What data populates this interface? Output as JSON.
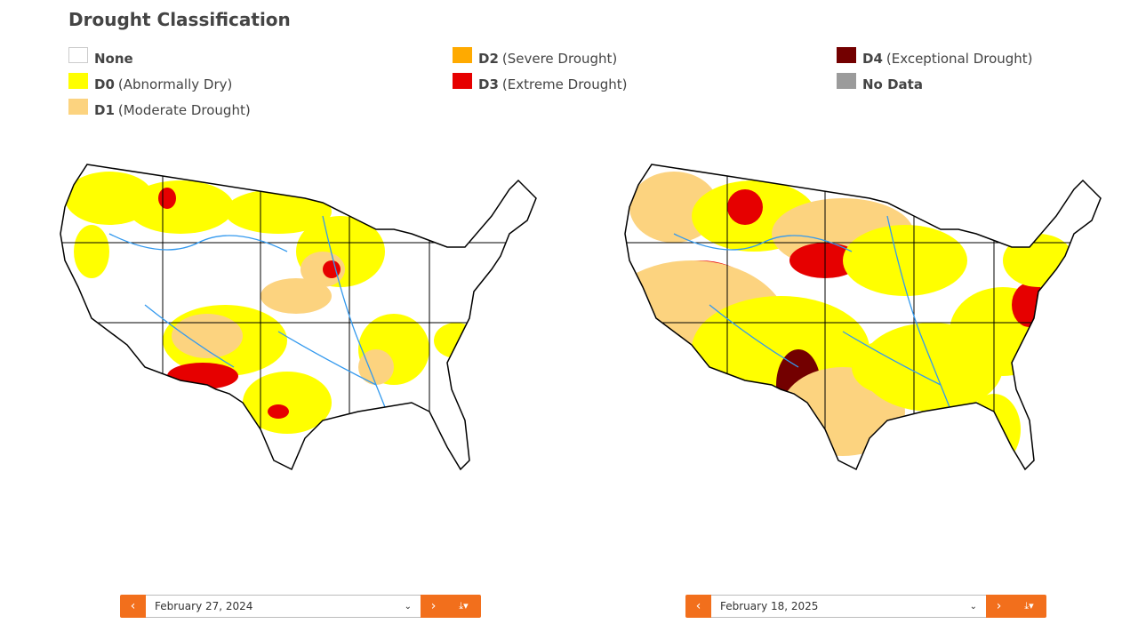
{
  "title": "Drought Classification",
  "legend": [
    {
      "code": "",
      "label": "None",
      "color": "#ffffff"
    },
    {
      "code": "D0",
      "label": "(Abnormally Dry)",
      "color": "#ffff00"
    },
    {
      "code": "D1",
      "label": "(Moderate Drought)",
      "color": "#fcd37f"
    },
    {
      "code": "D2",
      "label": "(Severe Drought)",
      "color": "#ffaa00"
    },
    {
      "code": "D3",
      "label": "(Extreme Drought)",
      "color": "#e60000"
    },
    {
      "code": "D4",
      "label": "(Exceptional Drought)",
      "color": "#730000"
    },
    {
      "code": "",
      "label": "No Data",
      "color": "#9b9b9b"
    }
  ],
  "maps": [
    {
      "date": "February 27, 2024"
    },
    {
      "date": "February 18, 2025"
    }
  ],
  "controls": {
    "prev_icon": "chevron-left-icon",
    "next_icon": "chevron-right-icon",
    "dropdown_icon": "chevron-down-icon",
    "download_icon": "download-icon",
    "accent": "#f26f1c"
  }
}
